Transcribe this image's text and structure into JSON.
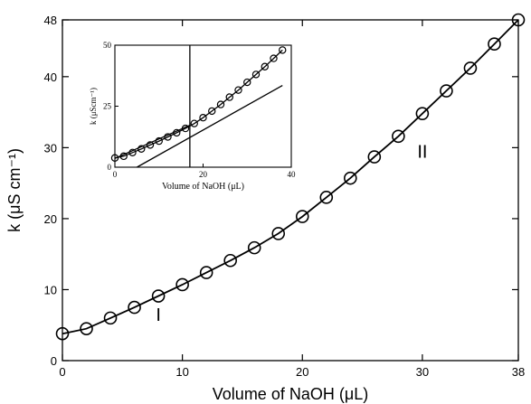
{
  "chart_data": [
    {
      "type": "scatter",
      "role": "main",
      "xlabel": "Volume of NaOH (μL)",
      "ylabel": "k (μS cm⁻¹)",
      "xlim": [
        0,
        38
      ],
      "ylim": [
        0,
        48
      ],
      "xticks": [
        0,
        10,
        20,
        30,
        38
      ],
      "yticks": [
        0,
        10,
        20,
        30,
        40,
        48
      ],
      "xtick_labels": [
        "0",
        "10",
        "20",
        "30",
        "38"
      ],
      "ytick_labels": [
        "0",
        "10",
        "20",
        "30",
        "40",
        "48"
      ],
      "grid": false,
      "series": [
        {
          "marker": "open-circle",
          "connected_by_fit_line": true,
          "x": [
            0,
            2,
            4,
            6,
            8,
            10,
            12,
            14,
            16,
            18,
            20,
            22,
            24,
            26,
            28,
            30,
            32,
            34,
            36,
            38
          ],
          "y": [
            3.8,
            4.5,
            6.0,
            7.5,
            9.1,
            10.7,
            12.4,
            14.1,
            15.9,
            17.9,
            20.3,
            23.0,
            25.7,
            28.7,
            31.6,
            34.8,
            38.0,
            41.2,
            44.6,
            48.0
          ]
        }
      ],
      "annotations": [
        {
          "text": "I",
          "x": 8,
          "y": 6.5
        },
        {
          "text": "II",
          "x": 30,
          "y": 29.5
        }
      ]
    },
    {
      "type": "scatter",
      "role": "inset",
      "xlabel": "Volume of NaOH (μL)",
      "ylabel": "k (μScm⁻¹)",
      "xlim": [
        0,
        40
      ],
      "ylim": [
        0,
        50
      ],
      "xticks": [
        0,
        20,
        40
      ],
      "yticks": [
        0,
        25,
        50
      ],
      "xtick_labels": [
        "0",
        "20",
        "40"
      ],
      "ytick_labels": [
        "0",
        "25",
        "50"
      ],
      "vertical_line_x": 17,
      "series": [
        {
          "marker": "open-circle",
          "x": [
            0,
            2,
            4,
            6,
            8,
            10,
            12,
            14,
            16,
            18,
            20,
            22,
            24,
            26,
            28,
            30,
            32,
            34,
            36,
            38
          ],
          "y": [
            3.8,
            4.5,
            6.0,
            7.5,
            9.1,
            10.7,
            12.4,
            14.1,
            15.9,
            17.9,
            20.3,
            23.0,
            25.7,
            28.7,
            31.6,
            34.8,
            38.0,
            41.2,
            44.6,
            48.0
          ]
        },
        {
          "kind": "line",
          "x": [
            0,
            17
          ],
          "y": [
            3.6,
            17.2
          ]
        },
        {
          "kind": "line",
          "x": [
            5,
            38
          ],
          "y": [
            0,
            33.5
          ]
        }
      ]
    }
  ]
}
